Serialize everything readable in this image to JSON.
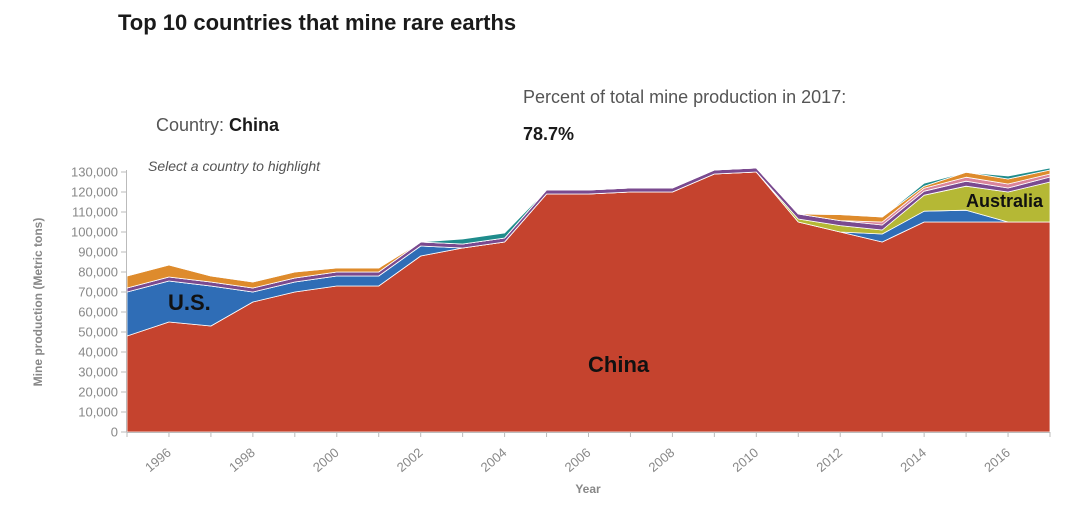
{
  "header": {
    "title": "Top 10 countries that mine rare earths",
    "country_prefix": "Country: ",
    "country_value": "China",
    "percent_prefix": "Percent of total mine production in 2017: ",
    "percent_value": "78.7%",
    "hint": "Select a country to highlight"
  },
  "colors": {
    "China": "#c5432e",
    "U.S.": "#2f6db6",
    "Australia": "#b5b835",
    "Other": "#de8b2c",
    "Purple": "#7a4a8f",
    "Teal": "#1f8c8c",
    "Pink": "#d9849b"
  },
  "chart_data": {
    "type": "area",
    "stacked": true,
    "xlabel": "Year",
    "ylabel": "Mine production (Metric tons)",
    "xlim": [
      1995,
      2017
    ],
    "ylim": [
      0,
      130000
    ],
    "y_ticks": [
      0,
      10000,
      20000,
      30000,
      40000,
      50000,
      60000,
      70000,
      80000,
      90000,
      100000,
      110000,
      120000,
      130000
    ],
    "y_tick_labels": [
      "0",
      "10,000",
      "20,000",
      "30,000",
      "40,000",
      "50,000",
      "60,000",
      "70,000",
      "80,000",
      "90,000",
      "100,000",
      "110,000",
      "120,000",
      "130,000"
    ],
    "x_ticks": [
      1996,
      1998,
      2000,
      2002,
      2004,
      2006,
      2008,
      2010,
      2012,
      2014,
      2016
    ],
    "x_tick_labels": [
      "1996",
      "1998",
      "2000",
      "2002",
      "2004",
      "2006",
      "2008",
      "2010",
      "2012",
      "2014",
      "2016"
    ],
    "x": [
      1995,
      1996,
      1997,
      1998,
      1999,
      2000,
      2001,
      2002,
      2003,
      2004,
      2005,
      2006,
      2007,
      2008,
      2009,
      2010,
      2011,
      2012,
      2013,
      2014,
      2015,
      2016,
      2017
    ],
    "series": [
      {
        "name": "China",
        "color_key": "China",
        "values": [
          48000,
          55000,
          53000,
          65000,
          70000,
          73000,
          73000,
          88000,
          92000,
          95000,
          119000,
          119000,
          120000,
          120000,
          129000,
          130000,
          105000,
          100000,
          95000,
          105000,
          105000,
          105000,
          105000
        ]
      },
      {
        "name": "U.S.",
        "color_key": "U.S.",
        "values": [
          22000,
          20500,
          20000,
          5000,
          5000,
          5000,
          5000,
          5000,
          0,
          0,
          0,
          0,
          0,
          0,
          0,
          0,
          0,
          0,
          4000,
          5400,
          5900,
          0,
          0
        ]
      },
      {
        "name": "Australia",
        "color_key": "Australia",
        "values": [
          0,
          0,
          0,
          0,
          0,
          0,
          0,
          0,
          0,
          0,
          0,
          0,
          0,
          0,
          0,
          0,
          1500,
          3200,
          2000,
          8000,
          12000,
          15000,
          20000
        ]
      },
      {
        "color_key": "Purple",
        "values": [
          2000,
          2000,
          2000,
          2000,
          2000,
          2000,
          2000,
          2000,
          2000,
          2000,
          2000,
          2000,
          2000,
          2000,
          2000,
          2000,
          2500,
          2500,
          2500,
          2000,
          2500,
          2000,
          2500
        ]
      },
      {
        "color_key": "Pink",
        "values": [
          0,
          0,
          0,
          0,
          0,
          0,
          0,
          0,
          0,
          0,
          0,
          0,
          0,
          0,
          0,
          0,
          0,
          0,
          1500,
          1500,
          2000,
          2000,
          1500
        ]
      },
      {
        "color_key": "Other",
        "values": [
          6000,
          6000,
          3000,
          3000,
          3000,
          2000,
          2000,
          0,
          0,
          0,
          0,
          0,
          0,
          0,
          0,
          0,
          0,
          3000,
          2500,
          1000,
          2500,
          2500,
          2000
        ]
      },
      {
        "color_key": "Teal",
        "values": [
          0,
          0,
          0,
          0,
          0,
          0,
          0,
          0,
          2500,
          2500,
          0,
          0,
          0,
          0,
          0,
          0,
          0,
          0,
          0,
          1500,
          0,
          1500,
          1000
        ]
      }
    ],
    "area_labels": [
      {
        "text": "U.S.",
        "color_key": "U.S."
      },
      {
        "text": "China",
        "color_key": "China"
      },
      {
        "text": "Australia",
        "color_key": "Australia"
      }
    ]
  }
}
